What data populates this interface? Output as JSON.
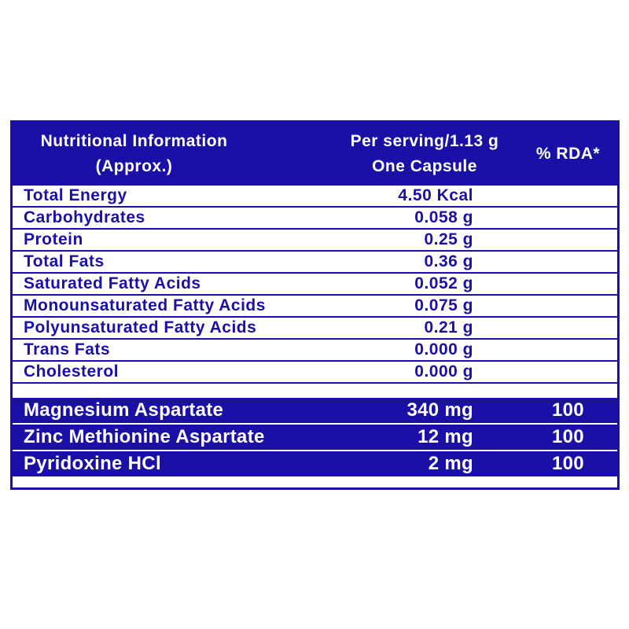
{
  "colors": {
    "table_blue": "#1b10a6",
    "white": "#ffffff"
  },
  "header": {
    "col1_line1": "Nutritional Information",
    "col1_line2": "(Approx.)",
    "col2_line1": "Per serving/1.13 g",
    "col2_line2": "One Capsule",
    "col3": "% RDA*"
  },
  "nutrient_rows": [
    {
      "label": "Total Energy",
      "value": "4.50 Kcal",
      "rda": ""
    },
    {
      "label": "Carbohydrates",
      "value": "0.058 g",
      "rda": ""
    },
    {
      "label": "Protein",
      "value": "0.25 g",
      "rda": ""
    },
    {
      "label": "Total Fats",
      "value": "0.36 g",
      "rda": ""
    },
    {
      "label": "Saturated Fatty Acids",
      "value": "0.052 g",
      "rda": ""
    },
    {
      "label": "Monounsaturated Fatty Acids",
      "value": "0.075 g",
      "rda": ""
    },
    {
      "label": "Polyunsaturated Fatty Acids",
      "value": "0.21 g",
      "rda": ""
    },
    {
      "label": "Trans Fats",
      "value": "0.000 g",
      "rda": ""
    },
    {
      "label": "Cholesterol",
      "value": "0.000 g",
      "rda": ""
    }
  ],
  "mineral_rows": [
    {
      "label": "Magnesium Aspartate",
      "value": "340 mg",
      "rda": "100"
    },
    {
      "label": "Zinc Methionine Aspartate",
      "value": "12 mg",
      "rda": "100"
    },
    {
      "label": "Pyridoxine HCl",
      "value": "2 mg",
      "rda": "100"
    }
  ]
}
